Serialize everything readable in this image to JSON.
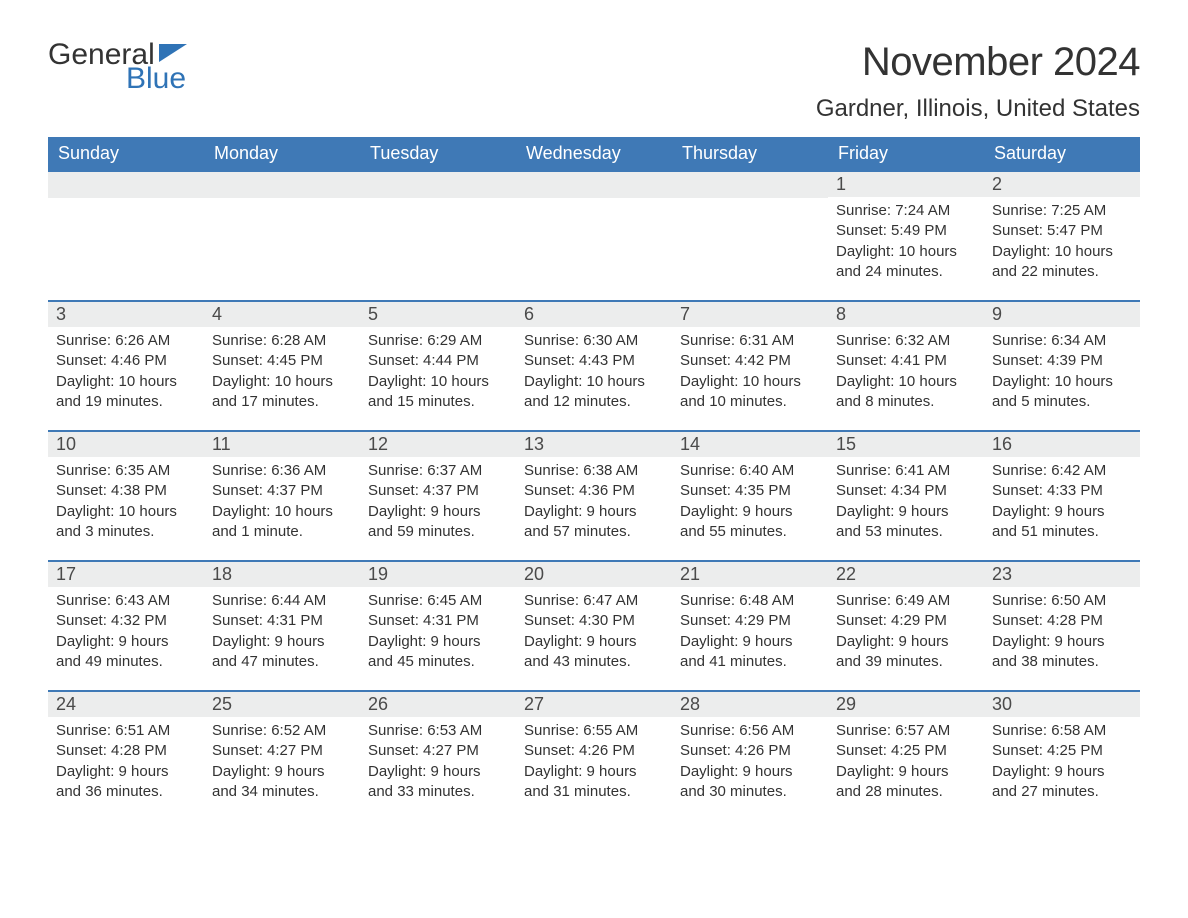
{
  "logo": {
    "text1": "General",
    "text2": "Blue"
  },
  "title": "November 2024",
  "location": "Gardner, Illinois, United States",
  "colors": {
    "header_bg": "#3f79b6",
    "header_text": "#ffffff",
    "week_border": "#3f79b6",
    "daynum_bg": "#eceded",
    "text": "#333333",
    "logo_blue": "#2f73b6"
  },
  "weekdays": [
    "Sunday",
    "Monday",
    "Tuesday",
    "Wednesday",
    "Thursday",
    "Friday",
    "Saturday"
  ],
  "weeks": [
    [
      {
        "blank": true
      },
      {
        "blank": true
      },
      {
        "blank": true
      },
      {
        "blank": true
      },
      {
        "blank": true
      },
      {
        "day": "1",
        "sunrise": "Sunrise: 7:24 AM",
        "sunset": "Sunset: 5:49 PM",
        "daylight1": "Daylight: 10 hours",
        "daylight2": "and 24 minutes."
      },
      {
        "day": "2",
        "sunrise": "Sunrise: 7:25 AM",
        "sunset": "Sunset: 5:47 PM",
        "daylight1": "Daylight: 10 hours",
        "daylight2": "and 22 minutes."
      }
    ],
    [
      {
        "day": "3",
        "sunrise": "Sunrise: 6:26 AM",
        "sunset": "Sunset: 4:46 PM",
        "daylight1": "Daylight: 10 hours",
        "daylight2": "and 19 minutes."
      },
      {
        "day": "4",
        "sunrise": "Sunrise: 6:28 AM",
        "sunset": "Sunset: 4:45 PM",
        "daylight1": "Daylight: 10 hours",
        "daylight2": "and 17 minutes."
      },
      {
        "day": "5",
        "sunrise": "Sunrise: 6:29 AM",
        "sunset": "Sunset: 4:44 PM",
        "daylight1": "Daylight: 10 hours",
        "daylight2": "and 15 minutes."
      },
      {
        "day": "6",
        "sunrise": "Sunrise: 6:30 AM",
        "sunset": "Sunset: 4:43 PM",
        "daylight1": "Daylight: 10 hours",
        "daylight2": "and 12 minutes."
      },
      {
        "day": "7",
        "sunrise": "Sunrise: 6:31 AM",
        "sunset": "Sunset: 4:42 PM",
        "daylight1": "Daylight: 10 hours",
        "daylight2": "and 10 minutes."
      },
      {
        "day": "8",
        "sunrise": "Sunrise: 6:32 AM",
        "sunset": "Sunset: 4:41 PM",
        "daylight1": "Daylight: 10 hours",
        "daylight2": "and 8 minutes."
      },
      {
        "day": "9",
        "sunrise": "Sunrise: 6:34 AM",
        "sunset": "Sunset: 4:39 PM",
        "daylight1": "Daylight: 10 hours",
        "daylight2": "and 5 minutes."
      }
    ],
    [
      {
        "day": "10",
        "sunrise": "Sunrise: 6:35 AM",
        "sunset": "Sunset: 4:38 PM",
        "daylight1": "Daylight: 10 hours",
        "daylight2": "and 3 minutes."
      },
      {
        "day": "11",
        "sunrise": "Sunrise: 6:36 AM",
        "sunset": "Sunset: 4:37 PM",
        "daylight1": "Daylight: 10 hours",
        "daylight2": "and 1 minute."
      },
      {
        "day": "12",
        "sunrise": "Sunrise: 6:37 AM",
        "sunset": "Sunset: 4:37 PM",
        "daylight1": "Daylight: 9 hours",
        "daylight2": "and 59 minutes."
      },
      {
        "day": "13",
        "sunrise": "Sunrise: 6:38 AM",
        "sunset": "Sunset: 4:36 PM",
        "daylight1": "Daylight: 9 hours",
        "daylight2": "and 57 minutes."
      },
      {
        "day": "14",
        "sunrise": "Sunrise: 6:40 AM",
        "sunset": "Sunset: 4:35 PM",
        "daylight1": "Daylight: 9 hours",
        "daylight2": "and 55 minutes."
      },
      {
        "day": "15",
        "sunrise": "Sunrise: 6:41 AM",
        "sunset": "Sunset: 4:34 PM",
        "daylight1": "Daylight: 9 hours",
        "daylight2": "and 53 minutes."
      },
      {
        "day": "16",
        "sunrise": "Sunrise: 6:42 AM",
        "sunset": "Sunset: 4:33 PM",
        "daylight1": "Daylight: 9 hours",
        "daylight2": "and 51 minutes."
      }
    ],
    [
      {
        "day": "17",
        "sunrise": "Sunrise: 6:43 AM",
        "sunset": "Sunset: 4:32 PM",
        "daylight1": "Daylight: 9 hours",
        "daylight2": "and 49 minutes."
      },
      {
        "day": "18",
        "sunrise": "Sunrise: 6:44 AM",
        "sunset": "Sunset: 4:31 PM",
        "daylight1": "Daylight: 9 hours",
        "daylight2": "and 47 minutes."
      },
      {
        "day": "19",
        "sunrise": "Sunrise: 6:45 AM",
        "sunset": "Sunset: 4:31 PM",
        "daylight1": "Daylight: 9 hours",
        "daylight2": "and 45 minutes."
      },
      {
        "day": "20",
        "sunrise": "Sunrise: 6:47 AM",
        "sunset": "Sunset: 4:30 PM",
        "daylight1": "Daylight: 9 hours",
        "daylight2": "and 43 minutes."
      },
      {
        "day": "21",
        "sunrise": "Sunrise: 6:48 AM",
        "sunset": "Sunset: 4:29 PM",
        "daylight1": "Daylight: 9 hours",
        "daylight2": "and 41 minutes."
      },
      {
        "day": "22",
        "sunrise": "Sunrise: 6:49 AM",
        "sunset": "Sunset: 4:29 PM",
        "daylight1": "Daylight: 9 hours",
        "daylight2": "and 39 minutes."
      },
      {
        "day": "23",
        "sunrise": "Sunrise: 6:50 AM",
        "sunset": "Sunset: 4:28 PM",
        "daylight1": "Daylight: 9 hours",
        "daylight2": "and 38 minutes."
      }
    ],
    [
      {
        "day": "24",
        "sunrise": "Sunrise: 6:51 AM",
        "sunset": "Sunset: 4:28 PM",
        "daylight1": "Daylight: 9 hours",
        "daylight2": "and 36 minutes."
      },
      {
        "day": "25",
        "sunrise": "Sunrise: 6:52 AM",
        "sunset": "Sunset: 4:27 PM",
        "daylight1": "Daylight: 9 hours",
        "daylight2": "and 34 minutes."
      },
      {
        "day": "26",
        "sunrise": "Sunrise: 6:53 AM",
        "sunset": "Sunset: 4:27 PM",
        "daylight1": "Daylight: 9 hours",
        "daylight2": "and 33 minutes."
      },
      {
        "day": "27",
        "sunrise": "Sunrise: 6:55 AM",
        "sunset": "Sunset: 4:26 PM",
        "daylight1": "Daylight: 9 hours",
        "daylight2": "and 31 minutes."
      },
      {
        "day": "28",
        "sunrise": "Sunrise: 6:56 AM",
        "sunset": "Sunset: 4:26 PM",
        "daylight1": "Daylight: 9 hours",
        "daylight2": "and 30 minutes."
      },
      {
        "day": "29",
        "sunrise": "Sunrise: 6:57 AM",
        "sunset": "Sunset: 4:25 PM",
        "daylight1": "Daylight: 9 hours",
        "daylight2": "and 28 minutes."
      },
      {
        "day": "30",
        "sunrise": "Sunrise: 6:58 AM",
        "sunset": "Sunset: 4:25 PM",
        "daylight1": "Daylight: 9 hours",
        "daylight2": "and 27 minutes."
      }
    ]
  ]
}
